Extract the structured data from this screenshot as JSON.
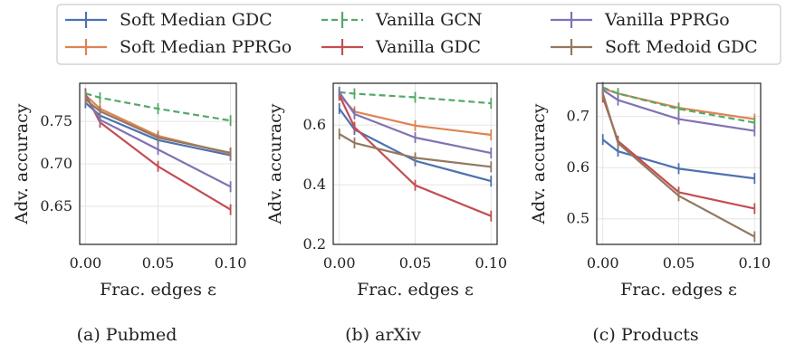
{
  "legend": [
    {
      "name": "Soft Median GDC",
      "color": "#4c72b0",
      "dashed": false
    },
    {
      "name": "Soft Median PPRGo",
      "color": "#dd8452",
      "dashed": false
    },
    {
      "name": "Vanilla GCN",
      "color": "#55a868",
      "dashed": true
    },
    {
      "name": "Vanilla GDC",
      "color": "#c44e52",
      "dashed": false
    },
    {
      "name": "Vanilla PPRGo",
      "color": "#8172b3",
      "dashed": false
    },
    {
      "name": "Soft Medoid GDC",
      "color": "#937860",
      "dashed": false
    }
  ],
  "chart_data": [
    {
      "type": "line",
      "caption": "(a) Pubmed",
      "xlabel": "Frac. edges ε",
      "ylabel": "Adv. accuracy",
      "x": [
        0.0,
        0.01,
        0.05,
        0.1
      ],
      "xticks": [
        "0.00",
        "0.05",
        "0.10"
      ],
      "xtick_values": [
        0.0,
        0.05,
        0.1
      ],
      "yticks": [
        "0.65",
        "0.70",
        "0.75"
      ],
      "ytick_values": [
        0.65,
        0.7,
        0.75
      ],
      "xlim": [
        -0.004,
        0.104
      ],
      "ylim": [
        0.605,
        0.795
      ],
      "grid": true,
      "series": [
        {
          "name": "Soft Median GDC",
          "values": [
            0.772,
            0.757,
            0.728,
            0.71
          ]
        },
        {
          "name": "Soft Median PPRGo",
          "values": [
            0.781,
            0.765,
            0.733,
            0.712
          ]
        },
        {
          "name": "Vanilla GCN",
          "values": [
            0.783,
            0.778,
            0.765,
            0.751
          ]
        },
        {
          "name": "Vanilla GDC",
          "values": [
            0.782,
            0.749,
            0.697,
            0.646
          ]
        },
        {
          "name": "Vanilla PPRGo",
          "values": [
            0.78,
            0.752,
            0.717,
            0.673
          ]
        },
        {
          "name": "Soft Medoid GDC",
          "values": [
            0.776,
            0.762,
            0.731,
            0.713
          ]
        }
      ]
    },
    {
      "type": "line",
      "caption": "(b) arXiv",
      "xlabel": "Frac. edges ε",
      "ylabel": "Adv. accuracy",
      "x": [
        0.0,
        0.01,
        0.05,
        0.1
      ],
      "xticks": [
        "0.00",
        "0.05",
        "0.10"
      ],
      "xtick_values": [
        0.0,
        0.05,
        0.1
      ],
      "yticks": [
        "0.2",
        "0.4",
        "0.6"
      ],
      "ytick_values": [
        0.2,
        0.4,
        0.6
      ],
      "xlim": [
        -0.004,
        0.104
      ],
      "ylim": [
        0.2,
        0.74
      ],
      "grid": true,
      "series": [
        {
          "name": "Soft Median GDC",
          "values": [
            0.655,
            0.585,
            0.48,
            0.412
          ]
        },
        {
          "name": "Soft Median PPRGo",
          "values": [
            0.7,
            0.645,
            0.598,
            0.567
          ]
        },
        {
          "name": "Vanilla GCN",
          "values": [
            0.71,
            0.705,
            0.693,
            0.673
          ]
        },
        {
          "name": "Vanilla GDC",
          "values": [
            0.7,
            0.593,
            0.398,
            0.295
          ]
        },
        {
          "name": "Vanilla PPRGo",
          "values": [
            0.71,
            0.637,
            0.558,
            0.506
          ]
        },
        {
          "name": "Soft Medoid GDC",
          "values": [
            0.57,
            0.54,
            0.49,
            0.46
          ]
        }
      ]
    },
    {
      "type": "line",
      "caption": "(c) Products",
      "xlabel": "Frac. edges ε",
      "ylabel": "Adv. accuracy",
      "x": [
        0.0,
        0.01,
        0.05,
        0.1
      ],
      "xticks": [
        "0.00",
        "0.05",
        "0.10"
      ],
      "xtick_values": [
        0.0,
        0.05,
        0.1
      ],
      "yticks": [
        "0.5",
        "0.6",
        "0.7"
      ],
      "ytick_values": [
        0.5,
        0.6,
        0.7
      ],
      "xlim": [
        -0.004,
        0.104
      ],
      "ylim": [
        0.45,
        0.765
      ],
      "grid": true,
      "series": [
        {
          "name": "Soft Median GDC",
          "values": [
            0.655,
            0.632,
            0.598,
            0.579
          ]
        },
        {
          "name": "Soft Median PPRGo",
          "values": [
            0.755,
            0.745,
            0.717,
            0.695
          ]
        },
        {
          "name": "Vanilla GCN",
          "values": [
            0.757,
            0.745,
            0.715,
            0.688
          ]
        },
        {
          "name": "Vanilla GDC",
          "values": [
            0.738,
            0.652,
            0.552,
            0.52
          ]
        },
        {
          "name": "Vanilla PPRGo",
          "values": [
            0.752,
            0.732,
            0.695,
            0.672
          ]
        },
        {
          "name": "Soft Medoid GDC",
          "values": [
            0.745,
            0.648,
            0.545,
            0.465
          ]
        }
      ]
    }
  ]
}
